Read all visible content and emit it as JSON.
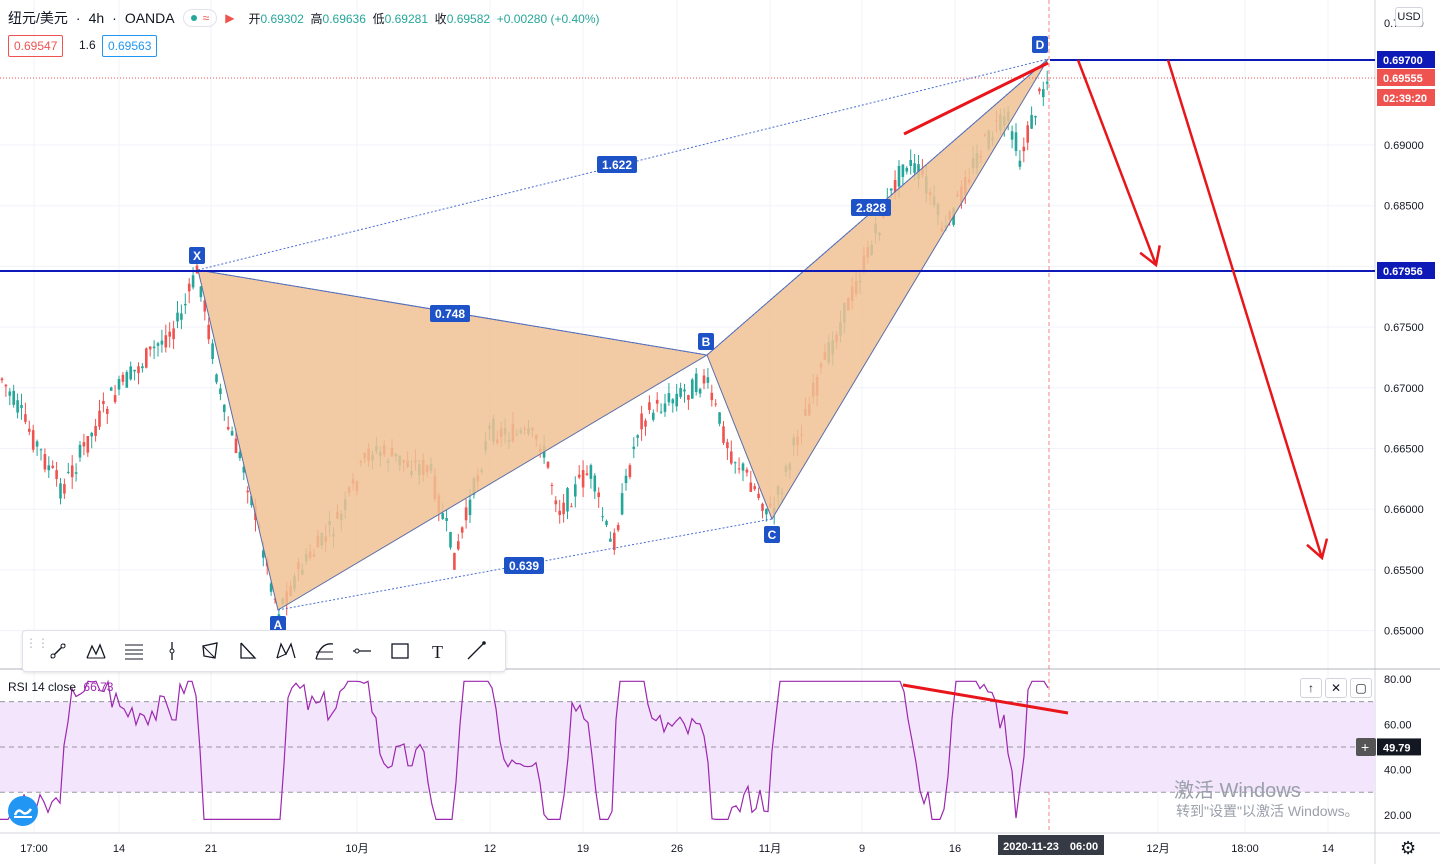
{
  "header": {
    "symbol": "纽元/美元",
    "interval": "4h",
    "exchange": "OANDA",
    "sep": "·",
    "ohlc": {
      "open_label": "开",
      "open": "0.69302",
      "high_label": "高",
      "high": "0.69636",
      "low_label": "低",
      "low": "0.69281",
      "close_label": "收",
      "close": "0.69582",
      "change": "+0.00280 (+0.40%)"
    },
    "sell_price": "0.69547",
    "spread": "1.6",
    "buy_price": "0.69563"
  },
  "axis": {
    "currency": "USD",
    "price_ticks": [
      "0.69000",
      "0.68500",
      "0.68000",
      "0.67500",
      "0.67000",
      "0.66500",
      "0.66000",
      "0.65500",
      "0.65000"
    ],
    "top_tick": "0.70000",
    "price_labels": {
      "level_d": "0.69700",
      "last_price": "0.69555",
      "countdown": "02:39:20",
      "level_x": "0.67956"
    },
    "time_ticks": [
      "17:00",
      "14",
      "21",
      "10月",
      "12",
      "19",
      "26",
      "11月",
      "9",
      "16",
      "12月",
      "18:00",
      "14"
    ],
    "cursor_date": "2020-11-23",
    "cursor_time": "06:00"
  },
  "pattern": {
    "points": [
      "X",
      "A",
      "B",
      "C",
      "D"
    ],
    "ratios": [
      "1.622",
      "0.748",
      "0.639",
      "2.828"
    ]
  },
  "rsi": {
    "label": "RSI 14 close",
    "value": "66.73",
    "ticks": [
      "80.00",
      "60.00",
      "40.00",
      "20.00"
    ],
    "cursor_value": "49.79",
    "levels": [
      70,
      50,
      30
    ]
  },
  "toolbar": {
    "tools": [
      "trend-line-icon",
      "pattern-icon",
      "fib-icon",
      "vertical-line-icon",
      "polygon-icon",
      "triangle-icon",
      "xabcd-icon",
      "gann-icon",
      "horizontal-ray-icon",
      "rectangle-icon",
      "text-icon",
      "line-icon"
    ]
  },
  "watermark": {
    "line1": "激活 Windows",
    "line2": "转到\"设置\"以激活 Windows。"
  },
  "colors": {
    "up": "#26a69a",
    "down": "#ef5350",
    "pattern_fill": "#f0c294",
    "level_line": "#0d1ab8",
    "arrow": "#e8161b",
    "rsi_line": "#9c27b0",
    "rsi_band": "#f3e5fb",
    "label_bg": "#1e53c7"
  }
}
